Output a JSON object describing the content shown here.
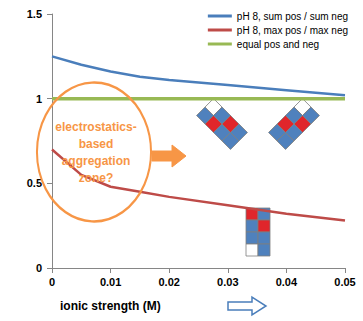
{
  "chart_data": {
    "type": "line",
    "x_label": "ionic strength (M)",
    "annotation": "electrostatics-\nbased\naggregation\nzone?",
    "x": [
      0,
      0.005,
      0.01,
      0.015,
      0.02,
      0.03,
      0.04,
      0.05
    ],
    "series": [
      {
        "name": "pH 8, sum pos / sum neg",
        "color": "#4a7ebb",
        "values": [
          1.25,
          1.2,
          1.16,
          1.13,
          1.11,
          1.08,
          1.05,
          1.02
        ]
      },
      {
        "name": "pH 8, max pos / max neg",
        "color": "#be4b48",
        "values": [
          0.7,
          0.55,
          0.48,
          0.45,
          0.42,
          0.37,
          0.32,
          0.28
        ]
      },
      {
        "name": "equal pos and neg",
        "color": "#98b954",
        "values": [
          1,
          1,
          1,
          1,
          1,
          1,
          1,
          1
        ]
      }
    ],
    "xlim": [
      0,
      0.05
    ],
    "xticks": [
      0,
      0.01,
      0.02,
      0.03,
      0.04,
      0.05
    ],
    "ylim": [
      0,
      1.5
    ],
    "yticks": [
      0,
      0.5,
      1,
      1.5
    ],
    "grid": false,
    "legend": "upper right",
    "marker": "none",
    "line_style": "solid"
  }
}
